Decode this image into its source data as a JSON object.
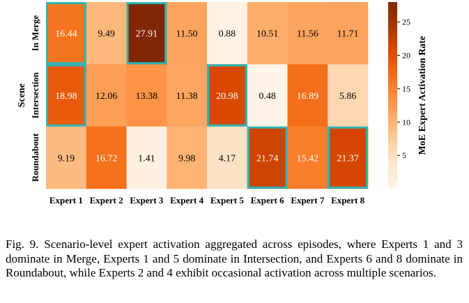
{
  "chart_data": {
    "type": "heatmap",
    "title": "",
    "xlabel": "",
    "ylabel": "Scene",
    "colorbar_label": "MoE Expert Activation Rate",
    "colorbar_ticks": [
      5,
      10,
      15,
      20,
      25
    ],
    "colorbar_tick_labels": [
      "5",
      "10",
      "15",
      "20",
      "25"
    ],
    "vmin": 0,
    "vmax": 28,
    "x_categories": [
      "Expert 1",
      "Expert 2",
      "Expert 3",
      "Expert 4",
      "Expert 5",
      "Expert 6",
      "Expert 7",
      "Expert 8"
    ],
    "y_categories": [
      "In Merge",
      "Intersection",
      "Roundabout"
    ],
    "values": [
      [
        16.44,
        9.49,
        27.91,
        11.5,
        0.88,
        10.51,
        11.56,
        11.71
      ],
      [
        18.98,
        12.06,
        13.38,
        11.38,
        20.98,
        0.48,
        16.89,
        5.86
      ],
      [
        9.19,
        16.72,
        1.41,
        9.98,
        4.17,
        21.74,
        15.42,
        21.37
      ]
    ],
    "value_labels": [
      [
        "16.44",
        "9.49",
        "27.91",
        "11.50",
        "0.88",
        "10.51",
        "11.56",
        "11.71"
      ],
      [
        "18.98",
        "12.06",
        "13.38",
        "11.38",
        "20.98",
        "0.48",
        "16.89",
        "5.86"
      ],
      [
        "9.19",
        "16.72",
        "1.41",
        "9.98",
        "4.17",
        "21.74",
        "15.42",
        "21.37"
      ]
    ],
    "highlighted": [
      [
        true,
        false,
        true,
        false,
        false,
        false,
        false,
        false
      ],
      [
        true,
        false,
        false,
        false,
        true,
        false,
        false,
        false
      ],
      [
        false,
        false,
        false,
        false,
        false,
        true,
        false,
        true
      ]
    ],
    "highlight_color": "#2ab7b7",
    "colormap": "Oranges"
  },
  "caption": "Fig. 9.  Scenario-level expert activation aggregated across episodes, where Experts 1 and 3 dominate in Merge, Experts 1 and 5 dominate in Intersection, and Experts 6 and 8 dominate in Roundabout, while Experts 2 and 4 exhibit occasional activation across multiple scenarios."
}
